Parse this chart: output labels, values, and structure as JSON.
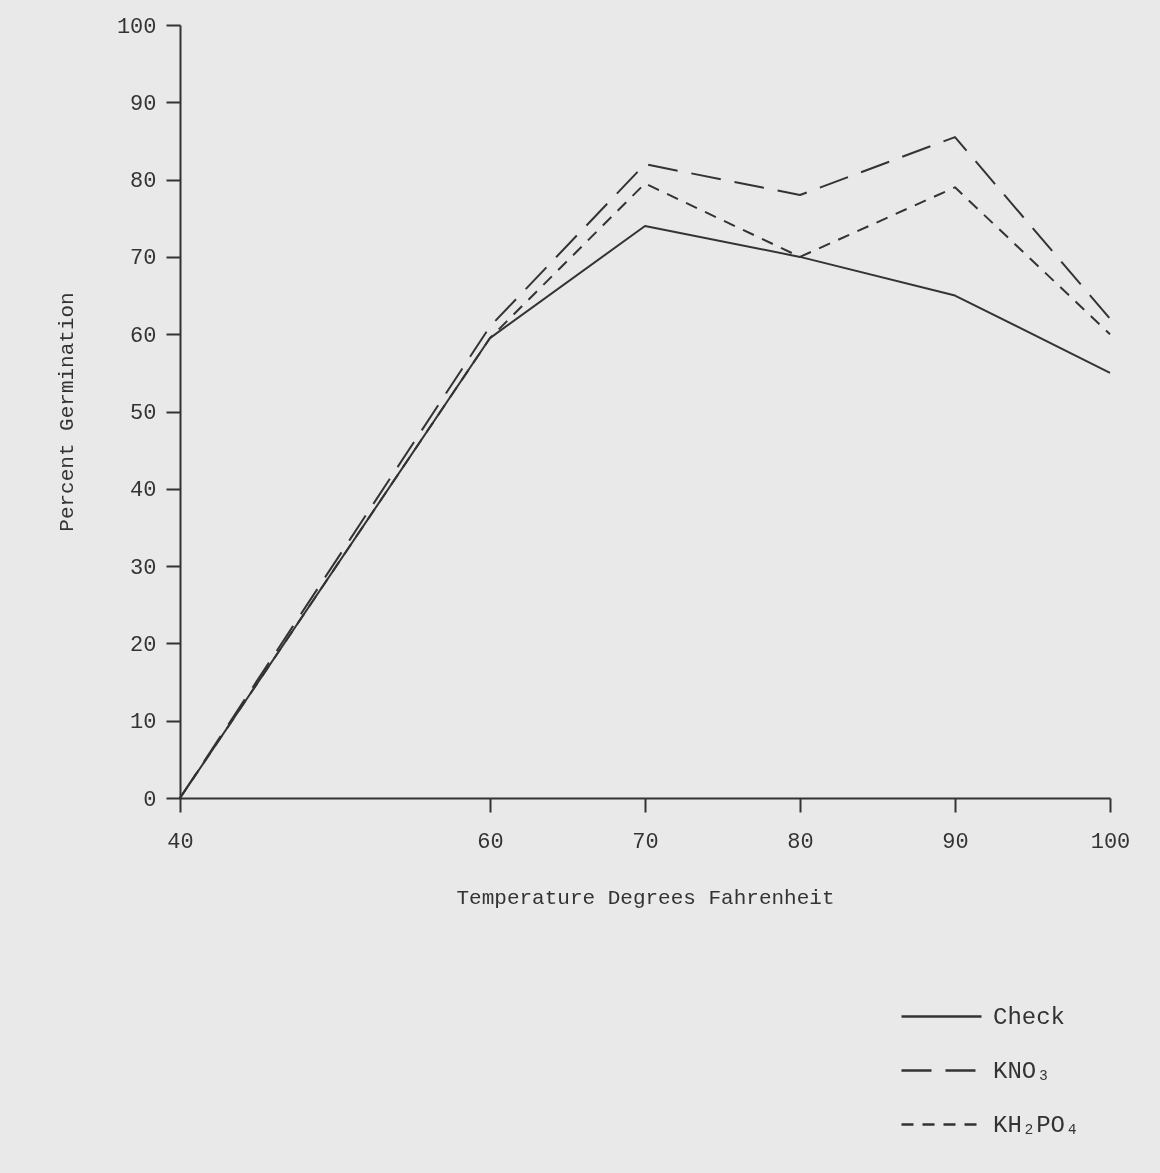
{
  "chart_data": {
    "type": "line",
    "xlabel": "Temperature Degrees Fahrenheit",
    "ylabel": "Percent Germination",
    "x": [
      40,
      60,
      70,
      80,
      90,
      100
    ],
    "series": [
      {
        "name": "Check",
        "color": "#333333",
        "line_style": "solid",
        "values": [
          0,
          59.5,
          74,
          70,
          65,
          55
        ]
      },
      {
        "name": "KNO₃",
        "color": "#333333",
        "line_style": "dashed",
        "values": [
          0,
          61,
          82,
          78,
          85.5,
          62
        ]
      },
      {
        "name": "KH₂PO₄",
        "color": "#333333",
        "line_style": "dotted",
        "values": [
          0,
          59.5,
          79.5,
          70,
          79,
          60
        ]
      }
    ],
    "xlim": [
      40,
      100
    ],
    "xticks": [
      40,
      60,
      70,
      80,
      90,
      100
    ],
    "ylim": [
      0,
      100
    ],
    "yticks": [
      0,
      10,
      20,
      30,
      40,
      50,
      60,
      70,
      80,
      90,
      100
    ],
    "grid": false,
    "legend": "bottom right",
    "marker": "none"
  }
}
